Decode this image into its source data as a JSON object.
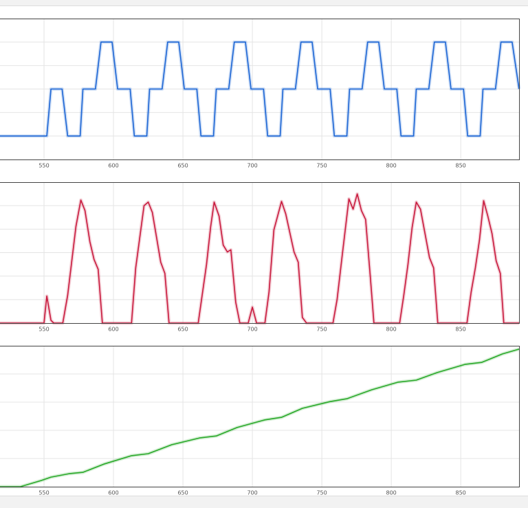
{
  "chart_data": [
    {
      "type": "line",
      "xlim": [
        518.3,
        892
      ],
      "ylim": [
        -0.5,
        2.5
      ],
      "xticks": [
        550,
        600,
        650,
        700,
        750,
        800,
        850
      ],
      "yticks": [
        0,
        0.5,
        1,
        1.5,
        2
      ],
      "grid": true,
      "x": [
        518,
        552,
        555,
        563,
        567,
        576,
        578,
        587,
        591,
        599,
        603,
        612,
        615,
        624,
        626,
        635,
        639,
        647,
        651,
        660,
        663,
        672,
        674,
        683,
        687,
        695,
        699,
        708,
        711,
        720,
        722,
        731,
        735,
        743,
        747,
        756,
        759,
        768,
        770,
        779,
        783,
        791,
        795,
        804,
        807,
        816,
        818,
        827,
        831,
        839,
        843,
        852,
        855,
        864,
        866,
        875,
        879,
        887,
        892
      ],
      "series": [
        {
          "color": "#1a64d4",
          "values": [
            0,
            0,
            1,
            1,
            0,
            0,
            1,
            1,
            2,
            2,
            1,
            1,
            0,
            0,
            1,
            1,
            2,
            2,
            1,
            1,
            0,
            0,
            1,
            1,
            2,
            2,
            1,
            1,
            0,
            0,
            1,
            1,
            2,
            2,
            1,
            1,
            0,
            0,
            1,
            1,
            2,
            2,
            1,
            1,
            0,
            0,
            1,
            1,
            2,
            2,
            1,
            1,
            0,
            0,
            1,
            1,
            2,
            2,
            1
          ]
        }
      ]
    },
    {
      "type": "line",
      "xlim": [
        518.3,
        892
      ],
      "ylim": [
        0,
        6
      ],
      "xticks": [
        550,
        600,
        650,
        700,
        750,
        800,
        850
      ],
      "yticks": [
        1,
        2,
        3,
        4,
        5
      ],
      "grid": true,
      "x": [
        518,
        550,
        552,
        555,
        557,
        563.5,
        567,
        573,
        576.5,
        579.5,
        583,
        586,
        589,
        592,
        613,
        616,
        622,
        625,
        628,
        634,
        637,
        640,
        661,
        667,
        670,
        672.5,
        676,
        679,
        682,
        684.5,
        688,
        691,
        697,
        700,
        703,
        709,
        712,
        715.5,
        721,
        724,
        730,
        733,
        736,
        739,
        758,
        761,
        764.5,
        769.5,
        772.5,
        775.5,
        778.5,
        781.5,
        785,
        787.5,
        806,
        809,
        812,
        815,
        818,
        821,
        827.5,
        830.5,
        833.5,
        854.5,
        857.5,
        860.5,
        863.5,
        866.5,
        869.5,
        872.5,
        875.5,
        878.5,
        881,
        892
      ],
      "series": [
        {
          "color": "#c8183c",
          "values": [
            0,
            0,
            1.15,
            0.12,
            0,
            0,
            1.18,
            4.12,
            5.24,
            4.79,
            3.47,
            2.71,
            2.29,
            0,
            0,
            2.35,
            5,
            5.15,
            4.71,
            2.59,
            2.12,
            0,
            0,
            2.5,
            4.12,
            5.15,
            4.56,
            3.32,
            3.03,
            3.12,
            0.88,
            0,
            0,
            0.68,
            0,
            0,
            1.32,
            3.97,
            5.18,
            4.65,
            3.03,
            2.59,
            0.24,
            0,
            0,
            1,
            2.79,
            5.29,
            4.85,
            5.5,
            4.79,
            4.41,
            1.91,
            0,
            0,
            1.18,
            2.5,
            4.06,
            5.15,
            4.85,
            2.79,
            2.35,
            0,
            0,
            1.32,
            2.35,
            3.53,
            5.21,
            4.56,
            3.82,
            2.65,
            2.12,
            0,
            0
          ]
        }
      ]
    },
    {
      "type": "line",
      "xlim": [
        518.3,
        892
      ],
      "ylim": [
        0,
        5
      ],
      "xticks": [
        550,
        600,
        650,
        700,
        750,
        800,
        850
      ],
      "yticks": [
        1,
        2,
        3,
        4
      ],
      "grid": true,
      "x": [
        518,
        533,
        548,
        555,
        568,
        578,
        593,
        613,
        625,
        642,
        662,
        674,
        689,
        709,
        721,
        736,
        756,
        768,
        786,
        805,
        818,
        833,
        853,
        865,
        880,
        892
      ],
      "series": [
        {
          "color": "#28a828",
          "values": [
            0,
            0,
            0.22,
            0.34,
            0.46,
            0.51,
            0.8,
            1.1,
            1.17,
            1.49,
            1.73,
            1.8,
            2.1,
            2.37,
            2.46,
            2.78,
            3.02,
            3.12,
            3.44,
            3.71,
            3.78,
            4.05,
            4.34,
            4.41,
            4.71,
            4.88
          ]
        }
      ]
    }
  ]
}
